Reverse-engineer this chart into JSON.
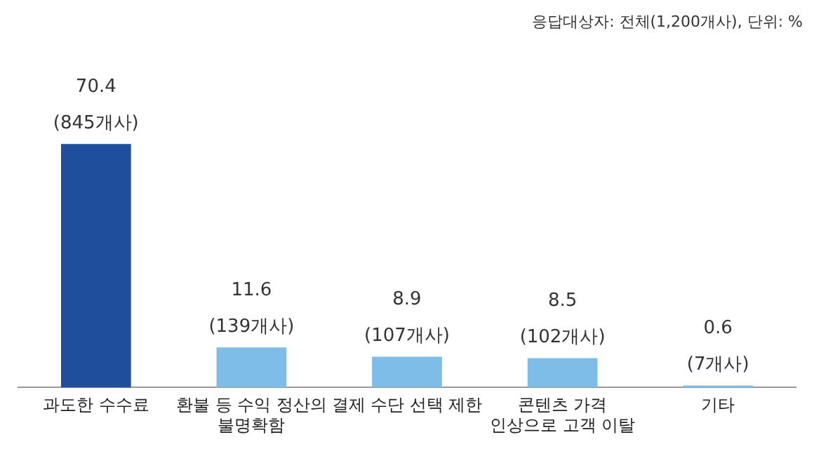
{
  "chart_data": {
    "type": "bar",
    "categories": [
      "과도한 수수료",
      "환불 등 수익 정산의 불명확함",
      "결제 수단 선택 제한",
      "콘텐츠 가격 인상으로 고객 이탈",
      "기타"
    ],
    "values": [
      70.4,
      11.6,
      8.9,
      8.5,
      0.6
    ],
    "colors": [
      "#1f4e9c",
      "#7dbde8",
      "#7dbde8",
      "#7dbde8",
      "#7dbde8"
    ],
    "value_labels": [
      "70.4\n(845개사)",
      "11.6\n(139개사)",
      "8.9\n(107개사)",
      "8.5\n(102개사)",
      "0.6\n(7개사)"
    ],
    "annotations": [
      "응답대상자: 전체(1,200개사), 단위: %"
    ],
    "grid": false,
    "legend": false
  }
}
